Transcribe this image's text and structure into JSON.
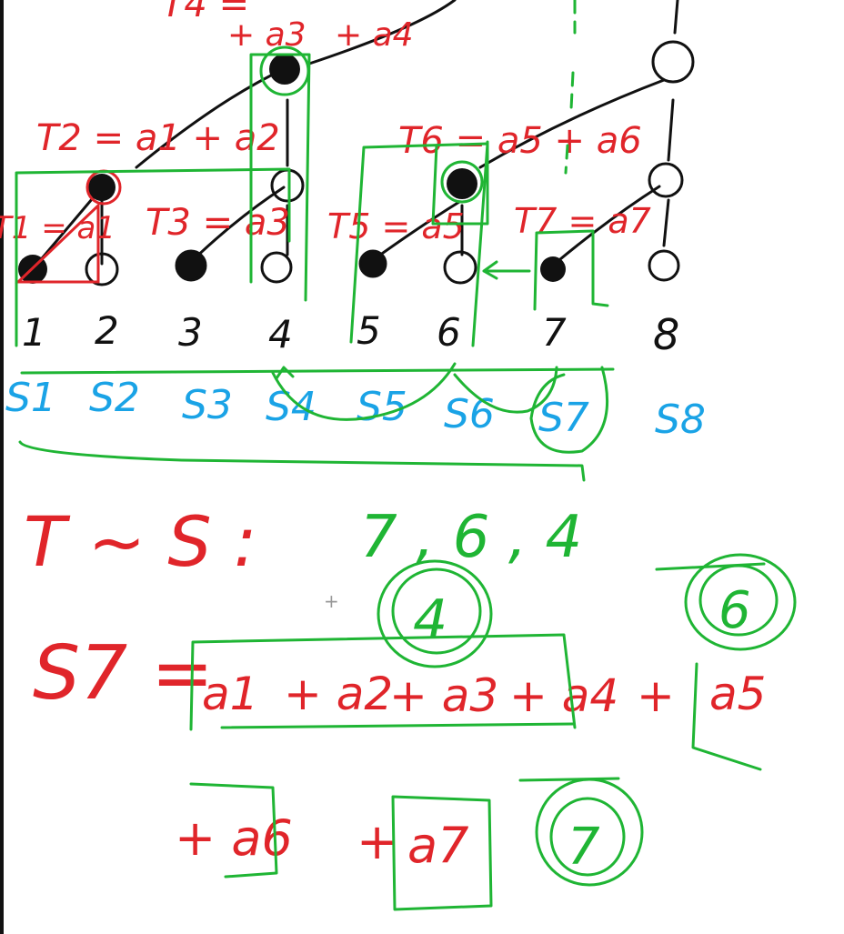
{
  "tree_labels": {
    "top_partial": "T4 =",
    "top_terms": [
      "+ a3",
      "+ a4"
    ],
    "t2": "T2 = a1 + a2",
    "t1": "T1 = a1",
    "t3": "T3 = a3",
    "t6": "T6 = a5 + a6",
    "t5": "T5 = a5",
    "t7": "T7 = a7"
  },
  "indices": [
    "1",
    "2",
    "3",
    "4",
    "5",
    "6",
    "7",
    "8"
  ],
  "s_labels": [
    "S1",
    "S2",
    "S3",
    "S4",
    "S5",
    "S6",
    "S7",
    "S8"
  ],
  "relation": {
    "lhs": "T ~ S :",
    "sequence": "7 , 6 , 4"
  },
  "circled_numbers": [
    "4",
    "6",
    "7"
  ],
  "equation": {
    "lhs": "S7 =",
    "terms_line1": [
      "a1",
      "+ a2",
      "+ a3",
      "+ a4",
      "+",
      "a5"
    ],
    "terms_line2": [
      "+ a6",
      "+",
      "a7"
    ]
  },
  "colors": {
    "annotation": "#e0252a",
    "s_labels": "#1aa3e6",
    "highlight": "#1fb534",
    "tree": "#111111"
  }
}
